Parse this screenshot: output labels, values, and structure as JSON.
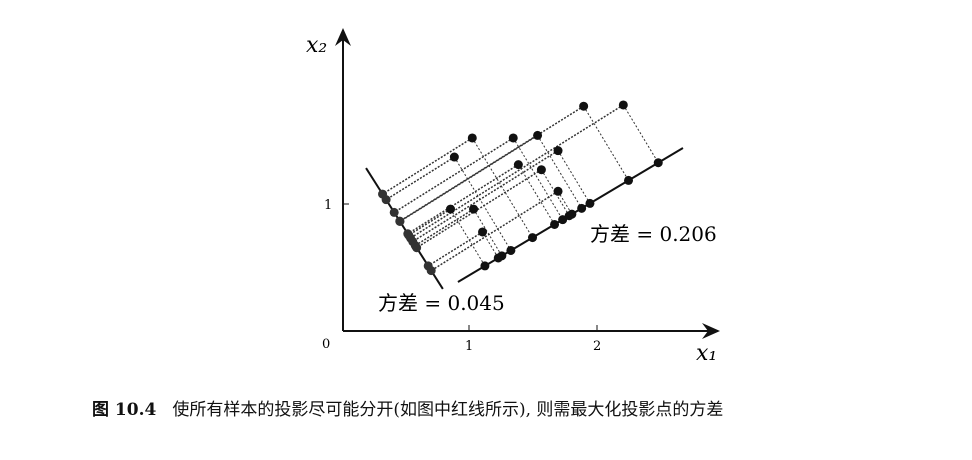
{
  "chart_data": {
    "type": "scatter",
    "xlabel": "x₁",
    "ylabel": "x₂",
    "x_ticks": [
      "0",
      "1",
      "2"
    ],
    "y_ticks": [
      "1"
    ],
    "xlim": [
      0,
      2.9
    ],
    "ylim": [
      0,
      2.35
    ],
    "grid": false,
    "points": [
      [
        1.01,
        1.52
      ],
      [
        1.33,
        1.52
      ],
      [
        1.52,
        1.54
      ],
      [
        1.88,
        1.77
      ],
      [
        2.19,
        1.78
      ],
      [
        0.87,
        1.37
      ],
      [
        1.68,
        1.42
      ],
      [
        1.37,
        1.31
      ],
      [
        1.55,
        1.27
      ],
      [
        1.68,
        1.1
      ],
      [
        0.84,
        0.96
      ],
      [
        1.02,
        0.96
      ],
      [
        1.09,
        0.78
      ]
    ],
    "lines": [
      {
        "from": [
          0.898,
          0.386
        ],
        "to": [
          2.656,
          1.441
        ],
        "annotation": "方差 = 0.206"
      },
      {
        "from": [
          0.18,
          1.283
        ],
        "to": [
          0.78,
          0.331
        ],
        "annotation": "方差 = 0.045"
      }
    ],
    "colors": {
      "points": "#111111",
      "lines": "#111111",
      "dotted": "#333333"
    }
  },
  "caption": {
    "label": "图 10.4",
    "text": "使所有样本的投影尽可能分开(如图中红线所示), 则需最大化投影点的方差"
  }
}
